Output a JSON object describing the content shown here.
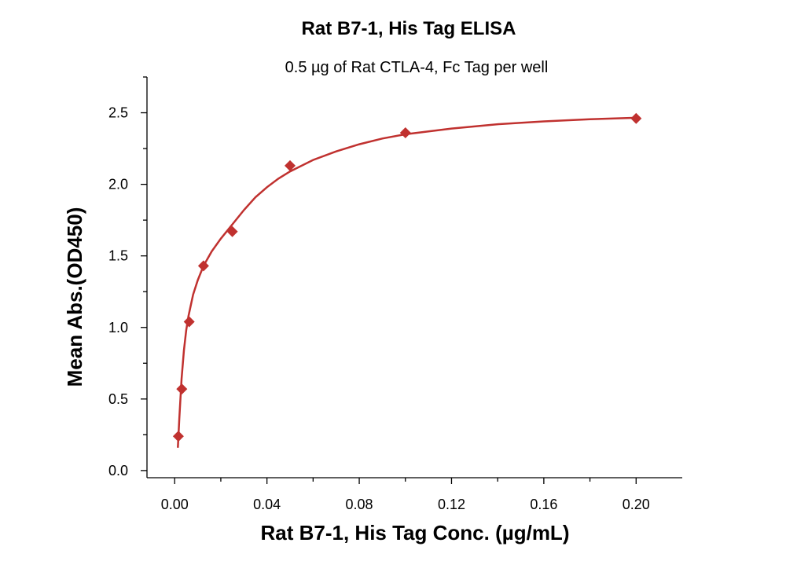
{
  "chart_data": {
    "type": "scatter",
    "title": "Rat B7-1, His Tag ELISA",
    "subtitle": "0.5 µg of Rat CTLA-4, Fc Tag per well",
    "xlabel": "Rat B7-1, His Tag Conc. (µg/mL)",
    "ylabel": "Mean Abs.(OD450)",
    "xlim": [
      -0.012,
      0.22
    ],
    "ylim": [
      -0.05,
      2.75
    ],
    "xticks": [
      0.0,
      0.04,
      0.08,
      0.12,
      0.16,
      0.2
    ],
    "xtick_labels": [
      "0.00",
      "0.04",
      "0.08",
      "0.12",
      "0.16",
      "0.20"
    ],
    "yticks": [
      0.0,
      0.5,
      1.0,
      1.5,
      2.0,
      2.5
    ],
    "ytick_labels": [
      "0.0",
      "0.5",
      "1.0",
      "1.5",
      "2.0",
      "2.5"
    ],
    "grid": false,
    "series": [
      {
        "marker": "diamond",
        "color": "#c0312f",
        "x": [
          0.0016,
          0.0031,
          0.0063,
          0.0125,
          0.025,
          0.05,
          0.1,
          0.2
        ],
        "y": [
          0.24,
          0.57,
          1.04,
          1.43,
          1.67,
          2.13,
          2.36,
          2.46
        ]
      }
    ],
    "fit_curve": {
      "color": "#c0312f",
      "x": [
        0.0014,
        0.002,
        0.003,
        0.004,
        0.005,
        0.006,
        0.008,
        0.01,
        0.0125,
        0.016,
        0.02,
        0.025,
        0.03,
        0.035,
        0.04,
        0.045,
        0.05,
        0.06,
        0.07,
        0.08,
        0.09,
        0.1,
        0.12,
        0.14,
        0.16,
        0.18,
        0.2
      ],
      "y": [
        0.16,
        0.36,
        0.64,
        0.84,
        0.98,
        1.08,
        1.23,
        1.33,
        1.43,
        1.53,
        1.62,
        1.72,
        1.82,
        1.91,
        1.98,
        2.04,
        2.09,
        2.17,
        2.23,
        2.28,
        2.32,
        2.35,
        2.39,
        2.42,
        2.44,
        2.455,
        2.465
      ]
    }
  }
}
